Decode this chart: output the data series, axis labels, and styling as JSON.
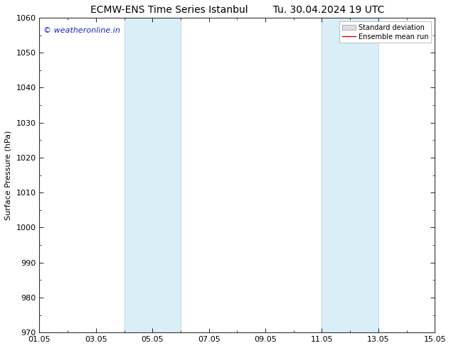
{
  "title_left": "ECMW-ENS Time Series Istanbul",
  "title_right": "Tu. 30.04.2024 19 UTC",
  "ylabel": "Surface Pressure (hPa)",
  "ylim": [
    970,
    1060
  ],
  "yticks": [
    970,
    980,
    990,
    1000,
    1010,
    1020,
    1030,
    1040,
    1050,
    1060
  ],
  "xtick_labels": [
    "01.05",
    "03.05",
    "05.05",
    "07.05",
    "09.05",
    "11.05",
    "13.05",
    "15.05"
  ],
  "xtick_positions": [
    0,
    2,
    4,
    6,
    8,
    10,
    12,
    14
  ],
  "xlim": [
    0,
    14
  ],
  "shaded_bands": [
    {
      "x_start": 3.0,
      "x_end": 5.0,
      "color": "#daeef8"
    },
    {
      "x_start": 10.0,
      "x_end": 12.0,
      "color": "#daeef8"
    }
  ],
  "band_edge_color": "#b8d8e8",
  "watermark_text": "© weatheronline.in",
  "watermark_color": "#2222bb",
  "legend_std_label": "Standard deviation",
  "legend_mean_label": "Ensemble mean run",
  "legend_std_facecolor": "#e0e0e0",
  "legend_std_edgecolor": "#aaaaaa",
  "legend_mean_color": "#cc0000",
  "background_color": "#ffffff",
  "plot_bg_color": "#ffffff",
  "title_fontsize": 10,
  "ylabel_fontsize": 8,
  "tick_fontsize": 8,
  "watermark_fontsize": 8,
  "legend_fontsize": 7
}
